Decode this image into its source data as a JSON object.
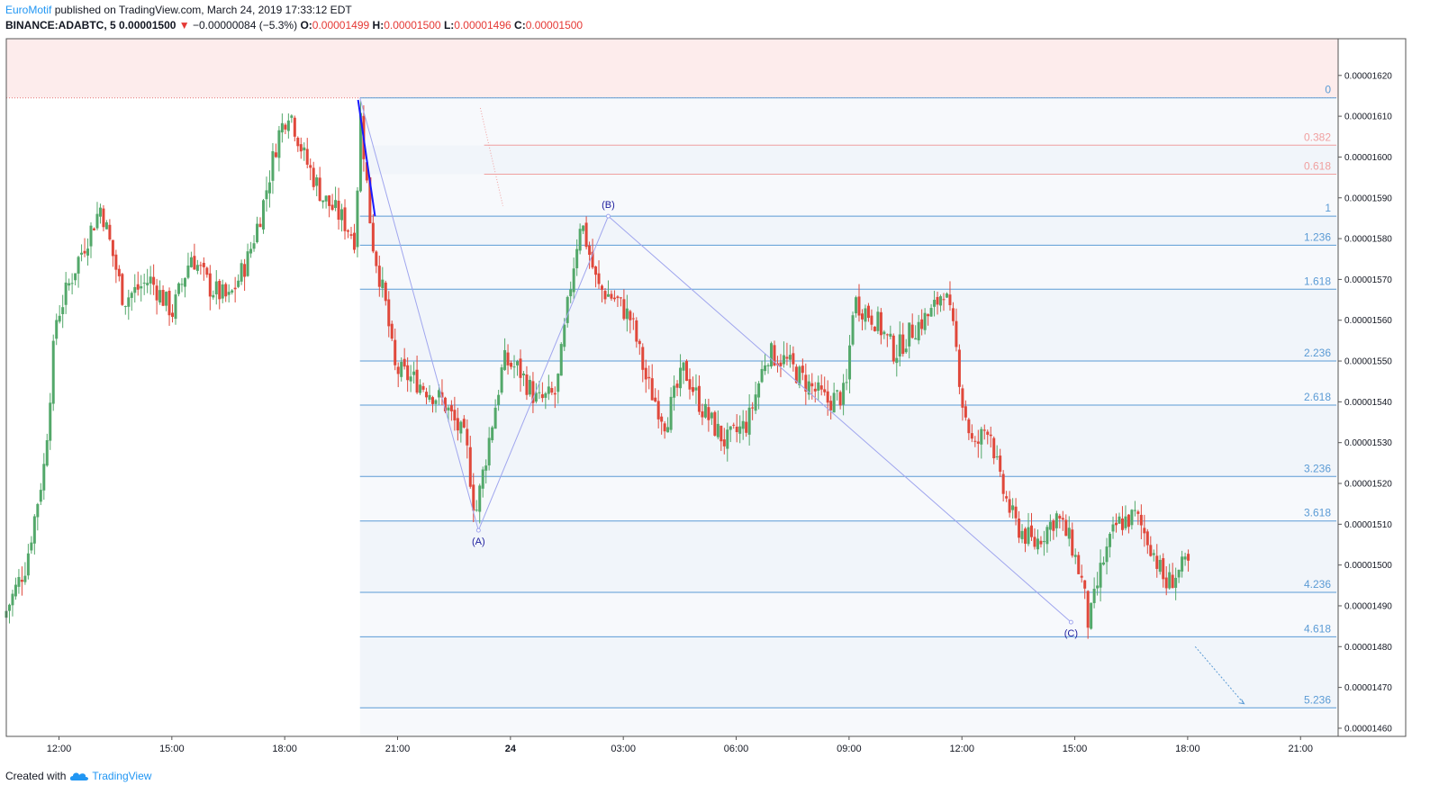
{
  "header": {
    "user": "EuroMotif",
    "published_text": "published on TradingView.com, March 24, 2019 17:33:12 EDT",
    "symbol": "BINANCE:ADABTC, 5",
    "last": "0.00001500",
    "arrow": "▼",
    "change": "−0.00000084 (−5.3%)",
    "o_label": "O:",
    "o_value": "0.00001499",
    "h_label": "H:",
    "h_value": "0.00001500",
    "l_label": "L:",
    "l_value": "0.00001496",
    "c_label": "C:",
    "c_value": "0.00001500"
  },
  "footer": {
    "created_with": "Created with",
    "brand": "TradingView",
    "logo_icon": "tradingview-cloud-icon"
  },
  "colors": {
    "up": "#26a69a",
    "up_candle": "#53a86a",
    "down": "#e0483b",
    "fib_line": "#5b9bd5",
    "fib_label": "#5b9bd5",
    "fib_pink": "#f0a0a0",
    "wave_line": "#a0a6ee",
    "wave_label": "#1e1e9e",
    "resistance_zone": "#fdecec"
  },
  "chart_data": {
    "type": "candlestick",
    "symbol": "BINANCE:ADABTC",
    "timeframe": "5",
    "y_ticks": [
      "0.00001620",
      "0.00001610",
      "0.00001600",
      "0.00001590",
      "0.00001580",
      "0.00001570",
      "0.00001560",
      "0.00001550",
      "0.00001540",
      "0.00001530",
      "0.00001520",
      "0.00001510",
      "0.00001500",
      "0.00001490",
      "0.00001480",
      "0.00001470",
      "0.00001460"
    ],
    "y_tick_values": [
      1620,
      1610,
      1600,
      1590,
      1580,
      1570,
      1560,
      1550,
      1540,
      1530,
      1520,
      1510,
      1500,
      1490,
      1480,
      1470,
      1460
    ],
    "ylim": [
      1458,
      1629
    ],
    "x_ticks": [
      "12:00",
      "15:00",
      "18:00",
      "21:00",
      "24",
      "03:00",
      "06:00",
      "09:00",
      "12:00",
      "15:00",
      "18:00",
      "21:00"
    ],
    "x_tick_hours": [
      12,
      15,
      18,
      21,
      24,
      27,
      30,
      33,
      36,
      39,
      42,
      45
    ],
    "xlim_hours": [
      10.6,
      46.0
    ],
    "fib_levels": [
      {
        "label": "0",
        "price": 1614.5,
        "color": "#5b9bd5"
      },
      {
        "label": "0.382",
        "price": 1602.9,
        "color": "#f0a0a0"
      },
      {
        "label": "0.618",
        "price": 1595.8,
        "color": "#f0a0a0"
      },
      {
        "label": "1",
        "price": 1585.5,
        "color": "#5b9bd5"
      },
      {
        "label": "1.236",
        "price": 1578.4,
        "color": "#5b9bd5"
      },
      {
        "label": "1.618",
        "price": 1567.6,
        "color": "#5b9bd5"
      },
      {
        "label": "2.236",
        "price": 1550.0,
        "color": "#5b9bd5"
      },
      {
        "label": "2.618",
        "price": 1539.2,
        "color": "#5b9bd5"
      },
      {
        "label": "3.236",
        "price": 1521.7,
        "color": "#5b9bd5"
      },
      {
        "label": "3.618",
        "price": 1510.8,
        "color": "#5b9bd5"
      },
      {
        "label": "4.236",
        "price": 1493.3,
        "color": "#5b9bd5"
      },
      {
        "label": "4.618",
        "price": 1482.4,
        "color": "#5b9bd5"
      },
      {
        "label": "5.236",
        "price": 1465.0,
        "color": "#5b9bd5"
      }
    ],
    "waves": [
      {
        "label": "(A)",
        "hour": 23.15,
        "price": 1508.5
      },
      {
        "label": "(B)",
        "hour": 26.6,
        "price": 1585.5
      },
      {
        "label": "(C)",
        "hour": 38.9,
        "price": 1486.0
      }
    ],
    "key_points": [
      {
        "hour": 10.6,
        "price": 1487
      },
      {
        "hour": 11.2,
        "price": 1500
      },
      {
        "hour": 11.7,
        "price": 1525
      },
      {
        "hour": 12.0,
        "price": 1560
      },
      {
        "hour": 12.6,
        "price": 1575
      },
      {
        "hour": 13.2,
        "price": 1588
      },
      {
        "hour": 13.8,
        "price": 1565
      },
      {
        "hour": 14.5,
        "price": 1570
      },
      {
        "hour": 15.1,
        "price": 1562
      },
      {
        "hour": 15.6,
        "price": 1576
      },
      {
        "hour": 16.1,
        "price": 1568
      },
      {
        "hour": 16.6,
        "price": 1565
      },
      {
        "hour": 17.1,
        "price": 1575
      },
      {
        "hour": 17.5,
        "price": 1588
      },
      {
        "hour": 17.9,
        "price": 1605
      },
      {
        "hour": 18.2,
        "price": 1612
      },
      {
        "hour": 18.6,
        "price": 1600
      },
      {
        "hour": 19.1,
        "price": 1590
      },
      {
        "hour": 19.6,
        "price": 1585
      },
      {
        "hour": 19.95,
        "price": 1580
      },
      {
        "hour": 20.1,
        "price": 1610
      },
      {
        "hour": 20.4,
        "price": 1580
      },
      {
        "hour": 20.8,
        "price": 1562
      },
      {
        "hour": 21.0,
        "price": 1548
      },
      {
        "hour": 21.6,
        "price": 1545
      },
      {
        "hour": 22.3,
        "price": 1540
      },
      {
        "hour": 22.9,
        "price": 1530
      },
      {
        "hour": 23.15,
        "price": 1512
      },
      {
        "hour": 23.4,
        "price": 1525
      },
      {
        "hour": 23.9,
        "price": 1550
      },
      {
        "hour": 24.3,
        "price": 1548
      },
      {
        "hour": 24.8,
        "price": 1540
      },
      {
        "hour": 25.3,
        "price": 1542
      },
      {
        "hour": 25.7,
        "price": 1570
      },
      {
        "hour": 25.95,
        "price": 1585
      },
      {
        "hour": 26.4,
        "price": 1568
      },
      {
        "hour": 26.9,
        "price": 1565
      },
      {
        "hour": 27.3,
        "price": 1560
      },
      {
        "hour": 27.7,
        "price": 1545
      },
      {
        "hour": 28.2,
        "price": 1535
      },
      {
        "hour": 28.7,
        "price": 1548
      },
      {
        "hour": 29.2,
        "price": 1538
      },
      {
        "hour": 29.8,
        "price": 1530
      },
      {
        "hour": 30.4,
        "price": 1535
      },
      {
        "hour": 30.9,
        "price": 1552
      },
      {
        "hour": 31.4,
        "price": 1550
      },
      {
        "hour": 31.9,
        "price": 1545
      },
      {
        "hour": 32.5,
        "price": 1540
      },
      {
        "hour": 33.0,
        "price": 1542
      },
      {
        "hour": 33.2,
        "price": 1565
      },
      {
        "hour": 33.8,
        "price": 1560
      },
      {
        "hour": 34.3,
        "price": 1552
      },
      {
        "hour": 34.8,
        "price": 1558
      },
      {
        "hour": 35.3,
        "price": 1562
      },
      {
        "hour": 35.6,
        "price": 1568
      },
      {
        "hour": 35.9,
        "price": 1555
      },
      {
        "hour": 36.1,
        "price": 1540
      },
      {
        "hour": 36.4,
        "price": 1528
      },
      {
        "hour": 36.8,
        "price": 1535
      },
      {
        "hour": 37.1,
        "price": 1520
      },
      {
        "hour": 37.5,
        "price": 1510
      },
      {
        "hour": 38.0,
        "price": 1505
      },
      {
        "hour": 38.6,
        "price": 1512
      },
      {
        "hour": 39.0,
        "price": 1505
      },
      {
        "hour": 39.3,
        "price": 1495
      },
      {
        "hour": 39.45,
        "price": 1485
      },
      {
        "hour": 39.8,
        "price": 1500
      },
      {
        "hour": 40.2,
        "price": 1510
      },
      {
        "hour": 40.7,
        "price": 1512
      },
      {
        "hour": 41.1,
        "price": 1505
      },
      {
        "hour": 41.5,
        "price": 1495
      },
      {
        "hour": 41.8,
        "price": 1498
      },
      {
        "hour": 42.05,
        "price": 1500
      }
    ]
  }
}
